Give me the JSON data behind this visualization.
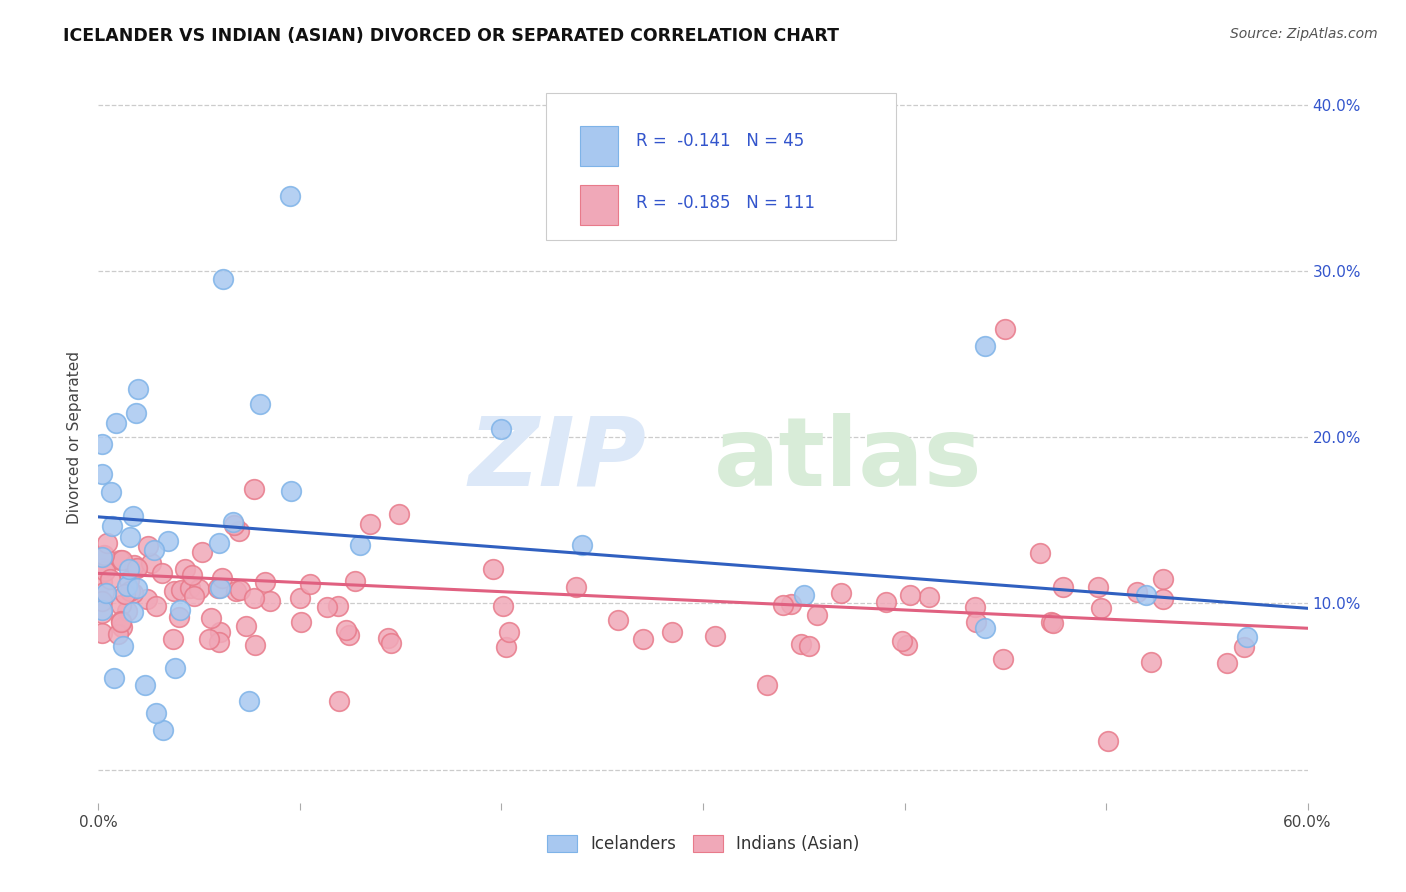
{
  "title": "ICELANDER VS INDIAN (ASIAN) DIVORCED OR SEPARATED CORRELATION CHART",
  "source": "Source: ZipAtlas.com",
  "ylabel": "Divorced or Separated",
  "x_min": 0.0,
  "x_max": 0.6,
  "y_min": -0.02,
  "y_max": 0.42,
  "x_ticks": [
    0.0,
    0.6
  ],
  "x_tick_labels": [
    "0.0%",
    "60.0%"
  ],
  "y_ticks": [
    0.0,
    0.1,
    0.2,
    0.3,
    0.4
  ],
  "y_right_labels": [
    "",
    "10.0%",
    "20.0%",
    "30.0%",
    "40.0%"
  ],
  "icelander_color": "#a8c8f0",
  "indian_color": "#f0a8b8",
  "icelander_edge_color": "#7eb3e8",
  "indian_edge_color": "#e87a8a",
  "icelander_line_color": "#3060c0",
  "indian_line_color": "#e06080",
  "legend_text_color": "#3355cc",
  "legend_N_color": "#3355cc",
  "R_icelander": -0.141,
  "N_icelander": 45,
  "R_indian": -0.185,
  "N_indian": 111,
  "ice_line_x0": 0.0,
  "ice_line_y0": 0.152,
  "ice_line_x1": 0.6,
  "ice_line_y1": 0.097,
  "ind_line_x0": 0.0,
  "ind_line_y0": 0.118,
  "ind_line_x1": 0.6,
  "ind_line_y1": 0.085,
  "background_color": "#ffffff",
  "grid_color": "#cccccc",
  "watermark_zip_color": "#dce8f8",
  "watermark_atlas_color": "#d8ecd8",
  "title_fontsize": 12.5,
  "source_fontsize": 10,
  "legend_labels": [
    "Icelanders",
    "Indians (Asian)"
  ]
}
